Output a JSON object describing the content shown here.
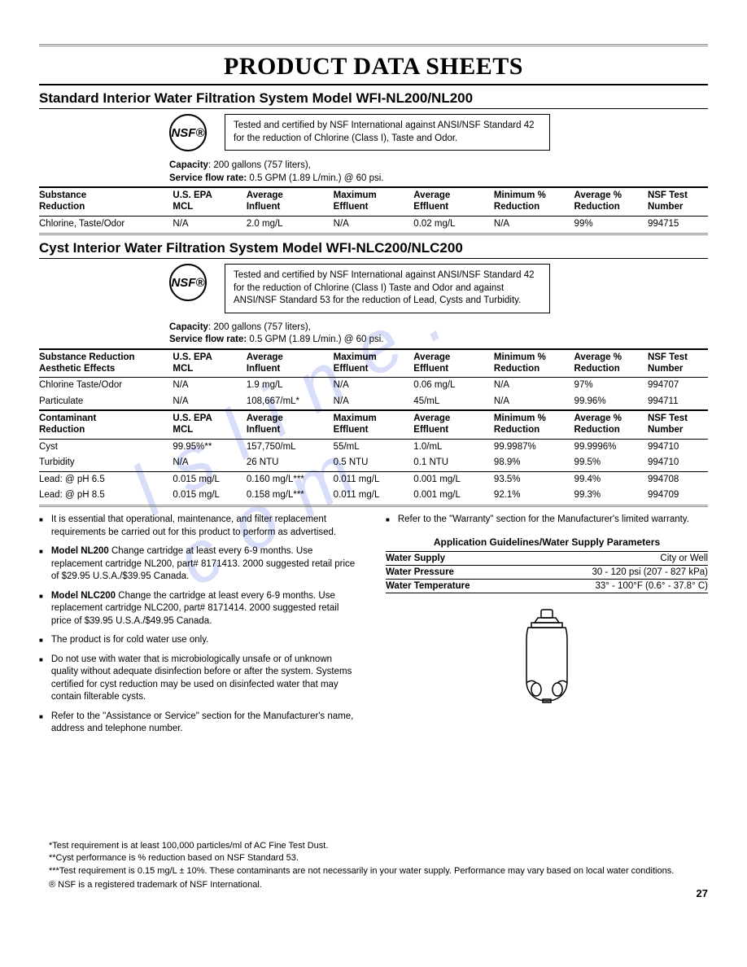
{
  "page_title": "PRODUCT DATA SHEETS",
  "page_number": "27",
  "watermark": "l s l i n e . c o m",
  "section1": {
    "title": "Standard Interior Water Filtration System Model WFI-NL200/NL200",
    "nsf_label": "NSF®",
    "cert_text": "Tested and certified by NSF International against ANSI/NSF Standard 42 for the reduction of Chlorine (Class I), Taste and Odor.",
    "capacity_label": "Capacity",
    "capacity_value": ": 200 gallons (757 liters),",
    "flow_label": "Service flow rate:",
    "flow_value": " 0.5 GPM (1.89 L/min.) @ 60 psi.",
    "columns": [
      "Substance\nReduction",
      "U.S. EPA\nMCL",
      "Average\nInfluent",
      "Maximum\nEffluent",
      "Average\nEffluent",
      "Minimum %\nReduction",
      "Average %\nReduction",
      "NSF Test\nNumber"
    ],
    "rows": [
      [
        "Chlorine, Taste/Odor",
        "N/A",
        "2.0 mg/L",
        "N/A",
        "0.02 mg/L",
        "N/A",
        "99%",
        "994715"
      ]
    ]
  },
  "section2": {
    "title": "Cyst Interior Water Filtration System Model WFI-NLC200/NLC200",
    "nsf_label": "NSF®",
    "cert_text": "Tested and certified by NSF International against ANSI/NSF Standard 42 for the reduction of Chlorine (Class I) Taste and Odor and against ANSI/NSF Standard 53 for the reduction of Lead, Cysts and Turbidity.",
    "capacity_label": "Capacity",
    "capacity_value": ": 200 gallons (757 liters),",
    "flow_label": "Service flow rate:",
    "flow_value": " 0.5 GPM (1.89 L/min.) @ 60 psi.",
    "head1": [
      "Substance Reduction\nAesthetic Effects",
      "U.S. EPA\nMCL",
      "Average\nInfluent",
      "Maximum\nEffluent",
      "Average\nEffluent",
      "Minimum %\nReduction",
      "Average %\nReduction",
      "NSF Test\nNumber"
    ],
    "rows1": [
      [
        "Chlorine Taste/Odor",
        "N/A",
        "1.9 mg/L",
        "N/A",
        "0.06 mg/L",
        "N/A",
        "97%",
        "994707"
      ],
      [
        "Particulate",
        "N/A",
        "108,667/mL*",
        "N/A",
        "45/mL",
        "N/A",
        "99.96%",
        "994711"
      ]
    ],
    "head2": [
      "Contaminant\nReduction",
      "U.S. EPA\nMCL",
      "Average\nInfluent",
      "Maximum\nEffluent",
      "Average\nEffluent",
      "Minimum %\nReduction",
      "Average %\nReduction",
      "NSF Test\nNumber"
    ],
    "rows2": [
      [
        "Cyst",
        "99.95%**",
        "157,750/mL",
        "55/mL",
        "1.0/mL",
        "99.9987%",
        "99.9996%",
        "994710"
      ],
      [
        "Turbidity",
        "N/A",
        "26 NTU",
        "0.5 NTU",
        "0.1 NTU",
        "98.9%",
        "99.5%",
        "994710"
      ]
    ],
    "rows3": [
      [
        "Lead: @ pH 6.5",
        "0.015 mg/L",
        "0.160 mg/L***",
        "0.011 mg/L",
        "0.001 mg/L",
        "93.5%",
        "99.4%",
        "994708"
      ],
      [
        "Lead: @ pH 8.5",
        "0.015 mg/L",
        "0.158 mg/L***",
        "0.011 mg/L",
        "0.001 mg/L",
        "92.1%",
        "99.3%",
        "994709"
      ]
    ]
  },
  "bullets_left": [
    {
      "pre": "",
      "bold": "",
      "text": "It is essential that operational, maintenance, and filter replacement requirements be carried out for this product to perform as advertised."
    },
    {
      "pre": "",
      "bold": "Model NL200",
      "text": " Change cartridge at least every 6-9 months. Use replacement cartridge NL200, part# 8171413. 2000 suggested retail price of $29.95 U.S.A./$39.95 Canada."
    },
    {
      "pre": "",
      "bold": "Model NLC200",
      "text": " Change the cartridge at least every 6-9 months. Use replacement cartridge NLC200, part# 8171414. 2000 suggested retail price of $39.95 U.S.A./$49.95 Canada."
    },
    {
      "pre": "",
      "bold": "",
      "text": "The product is for cold water use only."
    },
    {
      "pre": "",
      "bold": "",
      "text": "Do not use with water that is microbiologically unsafe or of unknown quality without adequate disinfection before or after the system. Systems certified for cyst reduction may be used on disinfected water that may contain filterable cysts."
    },
    {
      "pre": "",
      "bold": "",
      "text": "Refer to the \"Assistance or Service\" section for the Manufacturer's name, address and telephone number."
    }
  ],
  "bullets_right": [
    {
      "pre": "",
      "bold": "",
      "text": "Refer to the \"Warranty\" section for the Manufacturer's limited warranty."
    }
  ],
  "app_guidelines_title": "Application Guidelines/Water Supply Parameters",
  "params": [
    {
      "k": "Water Supply",
      "v": "City or Well"
    },
    {
      "k": "Water Pressure",
      "v": "30 - 120 psi (207 - 827 kPa)"
    },
    {
      "k": "Water Temperature",
      "v": "33° - 100°F (0.6° - 37.8° C)"
    }
  ],
  "footnotes": [
    "*Test requirement is at least 100,000 particles/ml of AC Fine Test Dust.",
    "**Cyst performance is % reduction based on NSF Standard 53.",
    "***Test requirement is 0.15 mg/L ± 10%. These contaminants are not necessarily in your water supply. Performance may vary based on local water conditions."
  ],
  "reg_note": "® NSF is a registered trademark of NSF International.",
  "col_widths": [
    "20%",
    "11%",
    "13%",
    "12%",
    "12%",
    "12%",
    "11%",
    "9%"
  ]
}
